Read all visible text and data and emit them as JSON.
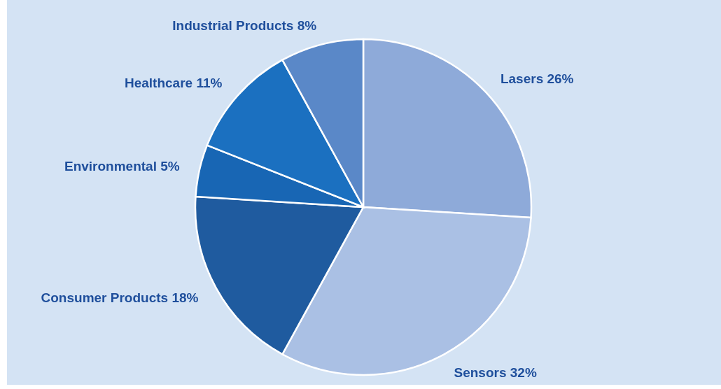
{
  "chart_data": {
    "type": "pie",
    "categories": [
      "Lasers",
      "Sensors",
      "Consumer Products",
      "Environmental",
      "Healthcare",
      "Industrial Products"
    ],
    "values": [
      26,
      32,
      18,
      5,
      11,
      8
    ],
    "value_labels": [
      "26%",
      "32%",
      "18%",
      "5%",
      "11%",
      "8%"
    ],
    "colors": [
      "#8eaad9",
      "#aac0e4",
      "#1f5b9f",
      "#1866b4",
      "#1b70c0",
      "#5a88c8"
    ]
  }
}
